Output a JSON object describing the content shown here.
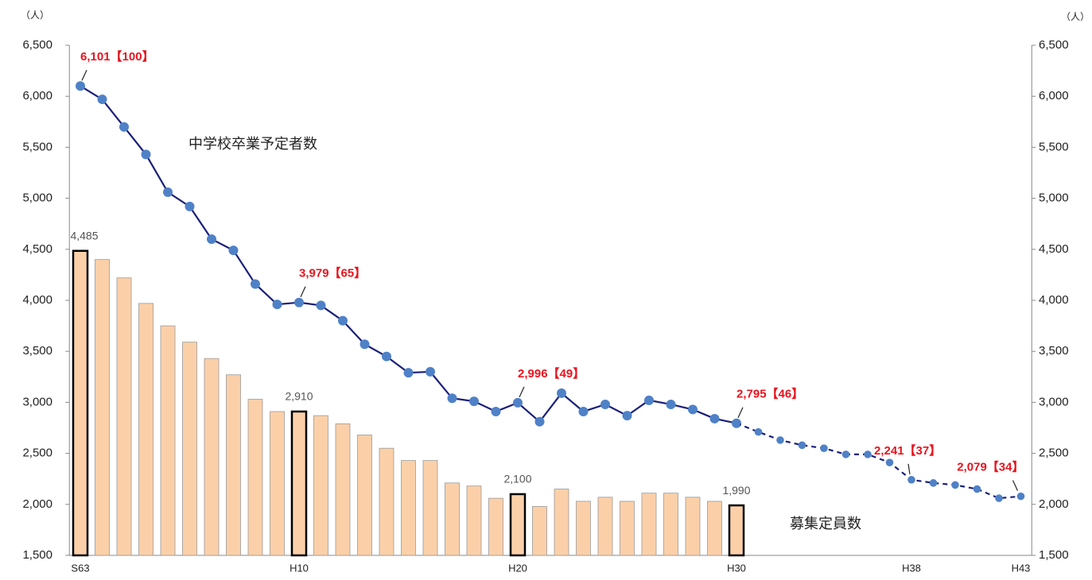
{
  "chart_data": {
    "type": "bar_line",
    "y_unit": "（人）",
    "y2_unit": "（人）",
    "categories": [
      "S63",
      null,
      null,
      null,
      null,
      null,
      null,
      null,
      null,
      null,
      "H10",
      null,
      null,
      null,
      null,
      null,
      null,
      null,
      null,
      null,
      "H20",
      null,
      null,
      null,
      null,
      null,
      null,
      null,
      null,
      null,
      "H30",
      null,
      null,
      null,
      null,
      null,
      null,
      null,
      "H38",
      null,
      null,
      null,
      null,
      "H43"
    ],
    "series": [
      {
        "name": "募集定員数",
        "type": "bar",
        "color": "#fbd0a9",
        "outline": "#9a9a9a",
        "highlight_outline": "#000000",
        "values": [
          4485,
          4400,
          4220,
          3970,
          3750,
          3590,
          3430,
          3270,
          3030,
          2910,
          2910,
          2870,
          2790,
          2680,
          2550,
          2430,
          2430,
          2210,
          2180,
          2060,
          2100,
          1980,
          2150,
          2030,
          2070,
          2030,
          2110,
          2110,
          2070,
          2030,
          1990,
          null,
          null,
          null,
          null,
          null,
          null,
          null,
          null,
          null,
          null,
          null,
          null,
          null
        ],
        "value_labels": [
          "4,485",
          null,
          null,
          null,
          null,
          null,
          null,
          null,
          null,
          null,
          "2,910",
          null,
          null,
          null,
          null,
          null,
          null,
          null,
          null,
          null,
          "2,100",
          null,
          null,
          null,
          null,
          null,
          null,
          null,
          null,
          null,
          "1,990",
          null,
          null,
          null,
          null,
          null,
          null,
          null,
          null,
          null,
          null,
          null,
          null,
          null
        ]
      },
      {
        "name": "中学校卒業予定者数",
        "type": "line",
        "color": "#1a1f7a",
        "marker_color": "#4f81c7",
        "dashed": false,
        "values": [
          6101,
          5970,
          5700,
          5430,
          5060,
          4920,
          4600,
          4490,
          4160,
          3960,
          3979,
          3950,
          3800,
          3570,
          3450,
          3290,
          3300,
          3040,
          3010,
          2910,
          2996,
          2810,
          3090,
          2910,
          2980,
          2870,
          3020,
          2980,
          2930,
          2840,
          2795,
          null,
          null,
          null,
          null,
          null,
          null,
          null,
          null,
          null,
          null,
          null,
          null,
          null
        ],
        "value_labels": [
          "6,101【100】",
          null,
          null,
          null,
          null,
          null,
          null,
          null,
          null,
          null,
          "3,979【65】",
          null,
          null,
          null,
          null,
          null,
          null,
          null,
          null,
          null,
          "2,996【49】",
          null,
          null,
          null,
          null,
          null,
          null,
          null,
          null,
          null,
          "2,795【46】",
          null,
          null,
          null,
          null,
          null,
          null,
          null,
          null,
          null,
          null,
          null,
          null,
          null
        ]
      },
      {
        "type": "line",
        "color": "#1a1f7a",
        "marker_color": "#4f81c7",
        "dashed": true,
        "values": [
          null,
          null,
          null,
          null,
          null,
          null,
          null,
          null,
          null,
          null,
          null,
          null,
          null,
          null,
          null,
          null,
          null,
          null,
          null,
          null,
          null,
          null,
          null,
          null,
          null,
          null,
          null,
          null,
          null,
          null,
          2795,
          2710,
          2630,
          2580,
          2550,
          2490,
          2490,
          2410,
          2241,
          2210,
          2190,
          2150,
          2060,
          2079
        ],
        "value_labels": [
          null,
          null,
          null,
          null,
          null,
          null,
          null,
          null,
          null,
          null,
          null,
          null,
          null,
          null,
          null,
          null,
          null,
          null,
          null,
          null,
          null,
          null,
          null,
          null,
          null,
          null,
          null,
          null,
          null,
          null,
          null,
          null,
          null,
          null,
          null,
          null,
          null,
          null,
          "2,241【37】",
          null,
          null,
          null,
          null,
          "2,079【34】"
        ]
      }
    ],
    "ylim": [
      1500,
      6500
    ],
    "yticks": [
      {
        "value": 1500,
        "label": "1,500"
      },
      {
        "value": 2000,
        "label": "2,000"
      },
      {
        "value": 2500,
        "label": "2,500"
      },
      {
        "value": 3000,
        "label": "3,000"
      },
      {
        "value": 3500,
        "label": "3,500"
      },
      {
        "value": 4000,
        "label": "4,000"
      },
      {
        "value": 4500,
        "label": "4,500"
      },
      {
        "value": 5000,
        "label": "5,000"
      },
      {
        "value": 5500,
        "label": "5,500"
      },
      {
        "value": 6000,
        "label": "6,000"
      },
      {
        "value": 6500,
        "label": "6,500"
      }
    ],
    "y2lim": [
      1500,
      6500
    ],
    "y2ticks": [
      {
        "value": 1500,
        "label": "1,500"
      },
      {
        "value": 2000,
        "label": "2,000"
      },
      {
        "value": 2500,
        "label": "2,500"
      },
      {
        "value": 3000,
        "label": "3,000"
      },
      {
        "value": 3500,
        "label": "3,500"
      },
      {
        "value": 4000,
        "label": "4,000"
      },
      {
        "value": 4500,
        "label": "4,500"
      },
      {
        "value": 5000,
        "label": "5,000"
      },
      {
        "value": 5500,
        "label": "5,500"
      },
      {
        "value": 6000,
        "label": "6,000"
      },
      {
        "value": 6500,
        "label": "6,500"
      }
    ],
    "grid": false
  }
}
